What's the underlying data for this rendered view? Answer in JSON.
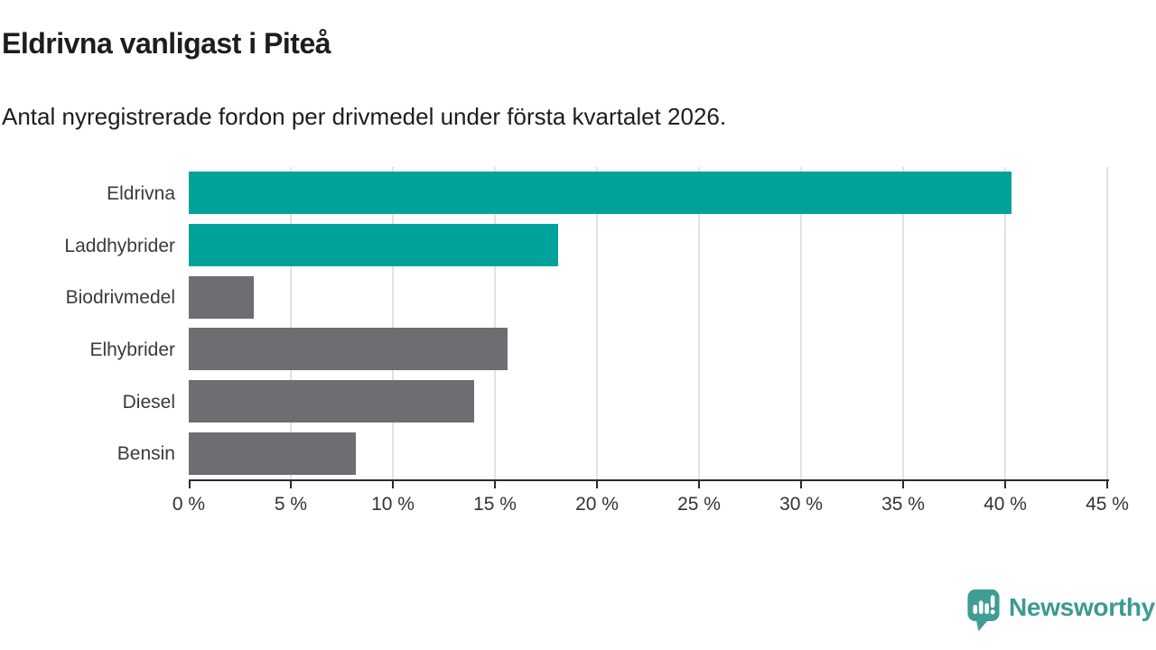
{
  "header": {
    "title": "Eldrivna vanligast i Piteå",
    "subtitle": "Antal nyregistrerade fordon per drivmedel under första kvartalet 2026."
  },
  "chart_data": {
    "type": "bar",
    "orientation": "horizontal",
    "title": "Eldrivna vanligast i Piteå",
    "subtitle": "Antal nyregistrerade fordon per drivmedel under första kvartalet 2026.",
    "categories": [
      "Eldrivna",
      "Laddhybrider",
      "Biodrivmedel",
      "Elhybrider",
      "Diesel",
      "Bensin"
    ],
    "values": [
      40.3,
      18.1,
      3.2,
      15.6,
      14.0,
      8.2
    ],
    "unit": "%",
    "bar_colors": [
      "#00a29a",
      "#00a29a",
      "#6d6d72",
      "#6d6d72",
      "#6d6d72",
      "#6d6d72"
    ],
    "highlight_color": "#00a29a",
    "default_color": "#6d6d72",
    "xlabel": "",
    "ylabel": "",
    "xlim": [
      0,
      45
    ],
    "x_tick_values": [
      0,
      5,
      10,
      15,
      20,
      25,
      30,
      35,
      40,
      45
    ],
    "x_tick_labels": [
      "0 %",
      "5 %",
      "10 %",
      "15 %",
      "20 %",
      "25 %",
      "30 %",
      "35 %",
      "40 %",
      "45 %"
    ],
    "grid": "vertical",
    "legend": "none"
  },
  "footer": {
    "brand": "Newsworthy",
    "logo_icon": "speech-bubble-bar-chart-icon",
    "logo_color": "#3f9d95"
  }
}
